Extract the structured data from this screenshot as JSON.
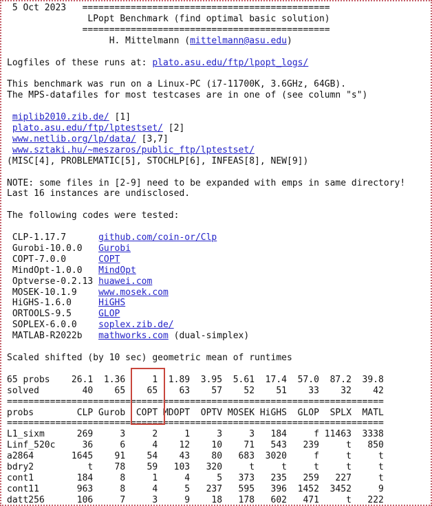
{
  "colors": {
    "background": "#ffffff",
    "text": "#111111",
    "link": "#2323c8",
    "page_border": "#c4606a",
    "highlight_box": "#c8463c"
  },
  "header": {
    "date": "5 Oct 2023",
    "title": "LPopt Benchmark (find optimal basic solution)",
    "author": "H. Mittelmann",
    "author_email": "mittelmann@asu.edu"
  },
  "highlight": {
    "purpose": "red box marking fastest solver column COPT",
    "column": "COPT"
  },
  "benchmark_table": {
    "summary_label": "Scaled shifted (by 10 sec) geometric mean of runtimes",
    "summary_rows": [
      {
        "label": "65 probs",
        "values": [
          "26.1",
          "1.36",
          "1",
          "1.89",
          "3.95",
          "5.61",
          "17.4",
          "57.0",
          "87.2",
          "39.8"
        ]
      },
      {
        "label": "solved",
        "values": [
          "40",
          "65",
          "65",
          "63",
          "57",
          "52",
          "51",
          "33",
          "32",
          "42"
        ]
      }
    ],
    "columns": [
      "CLP",
      "Gurob",
      "COPT",
      "MDOPT",
      "OPTV",
      "MOSEK",
      "HiGHS",
      "GLOP",
      "SPLX",
      "MATL"
    ],
    "rows": [
      {
        "prob": "L1_sixm",
        "values": [
          "269",
          "3",
          "2",
          "1",
          "3",
          "3",
          "184",
          "f",
          "11463",
          "3338"
        ]
      },
      {
        "prob": "Linf_520c",
        "values": [
          "36",
          "6",
          "4",
          "12",
          "10",
          "71",
          "543",
          "239",
          "t",
          "850"
        ]
      },
      {
        "prob": "a2864",
        "values": [
          "1645",
          "91",
          "54",
          "43",
          "80",
          "683",
          "3020",
          "f",
          "t",
          "t"
        ]
      },
      {
        "prob": "bdry2",
        "values": [
          "t",
          "78",
          "59",
          "103",
          "320",
          "t",
          "t",
          "t",
          "t",
          "t"
        ]
      },
      {
        "prob": "cont1",
        "values": [
          "184",
          "8",
          "1",
          "4",
          "5",
          "373",
          "235",
          "259",
          "227",
          "t"
        ]
      },
      {
        "prob": "cont11",
        "values": [
          "963",
          "8",
          "4",
          "5",
          "237",
          "595",
          "396",
          "1452",
          "3452",
          "9"
        ]
      },
      {
        "prob": "datt256",
        "values": [
          "106",
          "7",
          "3",
          "9",
          "18",
          "178",
          "602",
          "471",
          "t",
          "222"
        ]
      }
    ],
    "highlighted_column": "COPT"
  },
  "content": {
    "lines": [
      [
        {
          "t": " 5 Oct 2023   =============================================="
        }
      ],
      [
        {
          "t": "               LPopt Benchmark (find optimal basic solution)"
        }
      ],
      [
        {
          "t": "              =============================================="
        }
      ],
      [
        {
          "t": "                   H. Mittelmann ("
        },
        {
          "t": "mittelmann@asu.edu",
          "link": true,
          "name": "link-mittelmann-email"
        },
        {
          "t": ")"
        }
      ],
      [],
      [
        {
          "t": "Logfiles of these runs at: "
        },
        {
          "t": "plato.asu.edu/ftp/lpopt_logs/",
          "link": true,
          "name": "link-lpopt-logs"
        }
      ],
      [],
      [
        {
          "t": "This benchmark was run on a Linux-PC (i7-11700K, 3.6GHz, 64GB)."
        }
      ],
      [
        {
          "t": "The MPS-datafiles for most testcases are in one of (see column \"s\")"
        }
      ],
      [],
      [
        {
          "t": " "
        },
        {
          "t": "miplib2010.zib.de/",
          "link": true,
          "name": "link-miplib2010"
        },
        {
          "t": " [1]"
        }
      ],
      [
        {
          "t": " "
        },
        {
          "t": "plato.asu.edu/ftp/lptestset/",
          "link": true,
          "name": "link-lptestset"
        },
        {
          "t": " [2]"
        }
      ],
      [
        {
          "t": " "
        },
        {
          "t": "www.netlib.org/lp/data/",
          "link": true,
          "name": "link-netlib-lp-data"
        },
        {
          "t": " [3,7]"
        }
      ],
      [
        {
          "t": " "
        },
        {
          "t": "www.sztaki.hu/~meszaros/public_ftp/lptestset/",
          "link": true,
          "name": "link-sztaki-meszaros"
        }
      ],
      [
        {
          "t": "(MISC[4], PROBLEMATIC[5], STOCHLP[6], INFEAS[8], NEW[9])"
        }
      ],
      [],
      [
        {
          "t": "NOTE: some files in [2-9] need to be expanded with emps in same directory!"
        }
      ],
      [
        {
          "t": "Last 16 instances are undisclosed."
        }
      ],
      [],
      [
        {
          "t": "The following codes were tested:"
        }
      ],
      [],
      [
        {
          "t": " CLP-1.17.7      "
        },
        {
          "t": "github.com/coin-or/Clp",
          "link": true,
          "name": "link-clp-github"
        }
      ],
      [
        {
          "t": " Gurobi-10.0.0   "
        },
        {
          "t": "Gurobi",
          "link": true,
          "name": "link-gurobi"
        }
      ],
      [
        {
          "t": " COPT-7.0.0      "
        },
        {
          "t": "COPT",
          "link": true,
          "name": "link-copt"
        }
      ],
      [
        {
          "t": " MindOpt-1.0.0   "
        },
        {
          "t": "MindOpt",
          "link": true,
          "name": "link-mindopt"
        }
      ],
      [
        {
          "t": " Optverse-0.2.13 "
        },
        {
          "t": "huawei.com",
          "link": true,
          "name": "link-huawei"
        }
      ],
      [
        {
          "t": " MOSEK-10.1.9    "
        },
        {
          "t": "www.mosek.com",
          "link": true,
          "name": "link-mosek"
        }
      ],
      [
        {
          "t": " HiGHS-1.6.0     "
        },
        {
          "t": "HiGHS",
          "link": true,
          "name": "link-highs"
        }
      ],
      [
        {
          "t": " ORTOOLS-9.5     "
        },
        {
          "t": "GLOP",
          "link": true,
          "name": "link-glop"
        }
      ],
      [
        {
          "t": " SOPLEX-6.0.0    "
        },
        {
          "t": "soplex.zib.de/",
          "link": true,
          "name": "link-soplex"
        }
      ],
      [
        {
          "t": " MATLAB-R2022b   "
        },
        {
          "t": "mathworks.com",
          "link": true,
          "name": "link-mathworks"
        },
        {
          "t": " (dual-simplex)"
        }
      ],
      [],
      [
        {
          "t": "Scaled shifted (by 10 sec) geometric mean of runtimes"
        }
      ],
      [],
      [
        {
          "t": "65 probs    26.1  1.36     1  1.89  3.95  5.61  17.4  57.0  87.2  39.8"
        }
      ],
      [
        {
          "t": "solved        40    65    65    63    57    52    51    33    32    42"
        }
      ],
      [
        {
          "t": "======================================================================"
        }
      ],
      [
        {
          "t": "probs        CLP Gurob  COPT MDOPT  OPTV MOSEK HiGHS  GLOP  SPLX  MATL"
        }
      ],
      [
        {
          "t": "======================================================================"
        }
      ],
      [
        {
          "t": "L1_sixm      269     3     2     1     3     3   184     f 11463  3338"
        }
      ],
      [
        {
          "t": "Linf_520c     36     6     4    12    10    71   543   239     t   850"
        }
      ],
      [
        {
          "t": "a2864       1645    91    54    43    80   683  3020     f     t     t"
        }
      ],
      [
        {
          "t": "bdry2          t    78    59   103   320     t     t     t     t     t"
        }
      ],
      [
        {
          "t": "cont1        184     8     1     4     5   373   235   259   227     t"
        }
      ],
      [
        {
          "t": "cont11       963     8     4     5   237   595   396  1452  3452     9"
        }
      ],
      [
        {
          "t": "datt256      106     7     3     9    18   178   602   471     t   222"
        }
      ]
    ]
  }
}
